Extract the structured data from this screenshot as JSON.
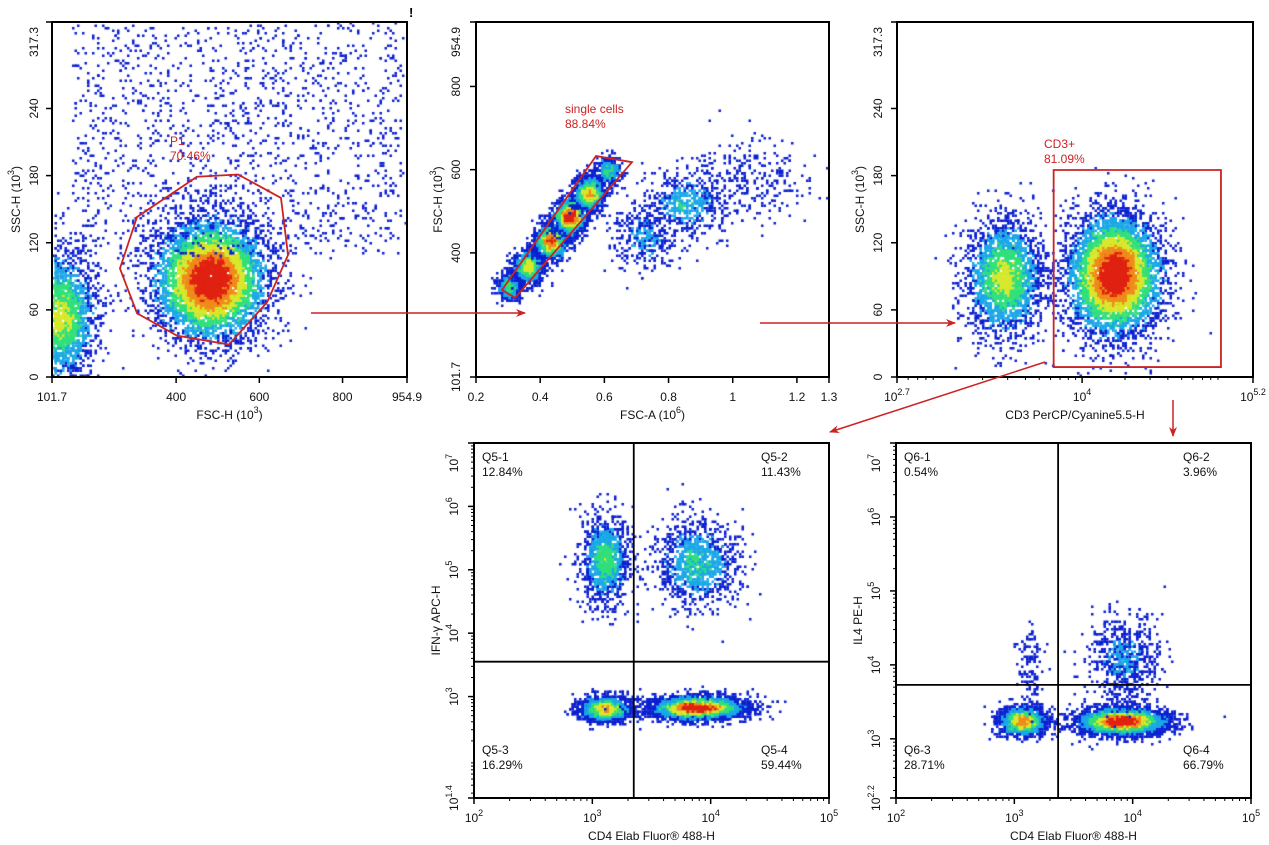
{
  "corner_mark": "!",
  "colors": {
    "gate": "#cc2222",
    "arrow": "#cc2222",
    "axis": "#000000",
    "density_scale": [
      "#0a1fd0",
      "#1aa7e8",
      "#2fe07a",
      "#d8e82a",
      "#f08a1a",
      "#e02010"
    ]
  },
  "chart_data": [
    {
      "type": "scatter",
      "style": "density-dot-plot",
      "xlabel": {
        "text": "FSC-H  (10",
        "sup": "3",
        "tail": ")"
      },
      "ylabel": {
        "text": "SSC-H  (10",
        "sup": "3",
        "tail": ")"
      },
      "xscale": "linear",
      "yscale": "linear",
      "xlim": [
        101.7,
        954.9
      ],
      "ylim": [
        0,
        317.3
      ],
      "xticks": [
        {
          "value": 101.7,
          "label": "101.7"
        },
        {
          "value": 400,
          "label": "400"
        },
        {
          "value": 600,
          "label": "600"
        },
        {
          "value": 800,
          "label": "800"
        },
        {
          "value": 954.9,
          "label": "954.9"
        }
      ],
      "yticks": [
        {
          "value": 0,
          "label": "0"
        },
        {
          "value": 60,
          "label": "60"
        },
        {
          "value": 120,
          "label": "120"
        },
        {
          "value": 180,
          "label": "180"
        },
        {
          "value": 240,
          "label": "240"
        },
        {
          "value": 317.3,
          "label": "317.3"
        }
      ],
      "gate": {
        "shape": "polygon",
        "name": "P1",
        "percent": "70.46%",
        "vertices": [
          [
            265,
            97
          ],
          [
            306,
            143
          ],
          [
            450,
            179
          ],
          [
            549,
            181
          ],
          [
            652,
            160
          ],
          [
            669,
            109
          ],
          [
            619,
            67
          ],
          [
            527,
            29
          ],
          [
            402,
            37
          ],
          [
            306,
            57
          ]
        ]
      },
      "populations": [
        {
          "center": [
            480,
            88
          ],
          "spread": [
            70,
            28
          ],
          "events": 5000,
          "peak": 1.0
        },
        {
          "center": [
            120,
            55
          ],
          "spread": [
            45,
            30
          ],
          "events": 2200,
          "peak": 0.55
        },
        {
          "range": [
            [
              150,
              950
            ],
            [
              110,
              317
            ]
          ],
          "events": 1500,
          "peak": 0.05
        }
      ]
    },
    {
      "type": "scatter",
      "style": "density-dot-plot",
      "xlabel": {
        "text": "FSC-A  (10",
        "sup": "6",
        "tail": ")"
      },
      "ylabel": {
        "text": "FSC-H  (10",
        "sup": "3",
        "tail": ")"
      },
      "xscale": "linear",
      "yscale": "linear",
      "xlim": [
        0.2,
        1.3
      ],
      "ylim": [
        101.7,
        954.9
      ],
      "xticks": [
        {
          "value": 0.2,
          "label": "0.2"
        },
        {
          "value": 0.4,
          "label": "0.4"
        },
        {
          "value": 0.6,
          "label": "0.6"
        },
        {
          "value": 0.8,
          "label": "0.8"
        },
        {
          "value": 1,
          "label": "1"
        },
        {
          "value": 1.2,
          "label": "1.2"
        },
        {
          "value": 1.3,
          "label": "1.3"
        }
      ],
      "yticks": [
        {
          "value": 101.7,
          "label": "101.7"
        },
        {
          "value": 400,
          "label": "400"
        },
        {
          "value": 600,
          "label": "600"
        },
        {
          "value": 800,
          "label": "800"
        },
        {
          "value": 954.9,
          "label": "954.9"
        }
      ],
      "gate": {
        "shape": "polygon",
        "name": "single cells",
        "percent": "88.84%",
        "vertices": [
          [
            0.281,
            311
          ],
          [
            0.574,
            633
          ],
          [
            0.686,
            618
          ],
          [
            0.322,
            292
          ]
        ]
      },
      "populations": [
        {
          "center": [
            0.3,
            320
          ],
          "spread": [
            0.02,
            18
          ],
          "events": 500,
          "peak": 0.45
        },
        {
          "center": [
            0.36,
            370
          ],
          "spread": [
            0.025,
            22
          ],
          "events": 900,
          "peak": 0.6
        },
        {
          "center": [
            0.43,
            430
          ],
          "spread": [
            0.025,
            22
          ],
          "events": 1300,
          "peak": 0.85
        },
        {
          "center": [
            0.49,
            490
          ],
          "spread": [
            0.025,
            22
          ],
          "events": 1300,
          "peak": 1.0
        },
        {
          "center": [
            0.55,
            545
          ],
          "spread": [
            0.025,
            22
          ],
          "events": 900,
          "peak": 0.7
        },
        {
          "center": [
            0.61,
            600
          ],
          "spread": [
            0.02,
            18
          ],
          "events": 400,
          "peak": 0.4
        },
        {
          "center": [
            0.72,
            440
          ],
          "spread": [
            0.05,
            40
          ],
          "events": 350,
          "peak": 0.2
        },
        {
          "center": [
            0.85,
            520
          ],
          "spread": [
            0.06,
            40
          ],
          "events": 500,
          "peak": 0.3
        },
        {
          "center": [
            1.05,
            580
          ],
          "spread": [
            0.1,
            50
          ],
          "events": 300,
          "peak": 0.1
        }
      ]
    },
    {
      "type": "scatter",
      "style": "density-dot-plot",
      "xlabel": {
        "text": "CD3 PerCP/Cyanine5.5-H",
        "sup": "",
        "tail": ""
      },
      "ylabel": {
        "text": "SSC-H  (10",
        "sup": "3",
        "tail": ")"
      },
      "xscale": "log",
      "yscale": "linear",
      "xlim": [
        501.19,
        158489.32
      ],
      "ylim": [
        0,
        317.3
      ],
      "xticks": [
        {
          "value": 501.19,
          "label": "10",
          "exp": "2.7"
        },
        {
          "value": 10000,
          "label": "10",
          "exp": "4"
        },
        {
          "value": 158489.32,
          "label": "10",
          "exp": "5.2"
        }
      ],
      "yticks": [
        {
          "value": 0,
          "label": "0"
        },
        {
          "value": 60,
          "label": "60"
        },
        {
          "value": 120,
          "label": "120"
        },
        {
          "value": 180,
          "label": "180"
        },
        {
          "value": 240,
          "label": "240"
        },
        {
          "value": 317.3,
          "label": "317.3"
        }
      ],
      "gate": {
        "shape": "rectangle",
        "name": "CD3+",
        "percent": "81.09%",
        "vertices": [
          [
            6310,
            8.9
          ],
          [
            94406,
            185
          ]
        ]
      },
      "populations": [
        {
          "center": [
            2820,
            90
          ],
          "spread": [
            0.14,
            27
          ],
          "events": 2200,
          "peak": 0.55
        },
        {
          "center": [
            16600,
            92
          ],
          "spread": [
            0.17,
            28
          ],
          "events": 5000,
          "peak": 1.0
        }
      ]
    },
    {
      "type": "scatter",
      "style": "density-dot-plot",
      "xlabel": {
        "text": "CD4 Elab Fluor® 488-H",
        "sup": "",
        "tail": ""
      },
      "ylabel": {
        "text": "IFN-γ APC-H",
        "sup": "",
        "tail": ""
      },
      "xscale": "log",
      "yscale": "log",
      "xlim": [
        100,
        100000
      ],
      "ylim": [
        25.12,
        10000000
      ],
      "xticks": [
        {
          "value": 100,
          "label": "10",
          "exp": "2"
        },
        {
          "value": 1000,
          "label": "10",
          "exp": "3"
        },
        {
          "value": 10000,
          "label": "10",
          "exp": "4"
        },
        {
          "value": 100000,
          "label": "10",
          "exp": "5"
        }
      ],
      "yticks": [
        {
          "value": 25.12,
          "label": "10",
          "exp": "1.4"
        },
        {
          "value": 1000,
          "label": "10",
          "exp": "3"
        },
        {
          "value": 10000,
          "label": "10",
          "exp": "4"
        },
        {
          "value": 100000,
          "label": "10",
          "exp": "5"
        },
        {
          "value": 1000000,
          "label": "10",
          "exp": "6"
        },
        {
          "value": 10000000,
          "label": "10",
          "exp": "7"
        }
      ],
      "quadrant": {
        "x": 2239,
        "y": 3548,
        "labels": [
          {
            "name": "Q5-1",
            "percent": "12.84%"
          },
          {
            "name": "Q5-2",
            "percent": "11.43%"
          },
          {
            "name": "Q5-3",
            "percent": "16.29%"
          },
          {
            "name": "Q5-4",
            "percent": "59.44%"
          }
        ]
      },
      "populations": [
        {
          "center": [
            1260,
            660
          ],
          "spread": [
            0.11,
            0.1
          ],
          "events": 1400,
          "peak": 0.7
        },
        {
          "center": [
            7600,
            690
          ],
          "spread": [
            0.2,
            0.09
          ],
          "events": 4000,
          "peak": 1.0
        },
        {
          "center": [
            1260,
            150000
          ],
          "spread": [
            0.1,
            0.35
          ],
          "events": 1100,
          "peak": 0.45
        },
        {
          "center": [
            7400,
            130000
          ],
          "spread": [
            0.17,
            0.35
          ],
          "events": 1100,
          "peak": 0.35
        }
      ]
    },
    {
      "type": "scatter",
      "style": "density-dot-plot",
      "xlabel": {
        "text": "CD4 Elab Fluor® 488-H",
        "sup": "",
        "tail": ""
      },
      "ylabel": {
        "text": "IL4 PE-H",
        "sup": "",
        "tail": ""
      },
      "xscale": "log",
      "yscale": "log",
      "xlim": [
        100,
        100000
      ],
      "ylim": [
        158.49,
        10000000
      ],
      "xticks": [
        {
          "value": 100,
          "label": "10",
          "exp": "2"
        },
        {
          "value": 1000,
          "label": "10",
          "exp": "3"
        },
        {
          "value": 10000,
          "label": "10",
          "exp": "4"
        },
        {
          "value": 100000,
          "label": "10",
          "exp": "5"
        }
      ],
      "yticks": [
        {
          "value": 158.49,
          "label": "10",
          "exp": "2.2"
        },
        {
          "value": 1000,
          "label": "10",
          "exp": "3"
        },
        {
          "value": 10000,
          "label": "10",
          "exp": "4"
        },
        {
          "value": 100000,
          "label": "10",
          "exp": "5"
        },
        {
          "value": 1000000,
          "label": "10",
          "exp": "6"
        },
        {
          "value": 10000000,
          "label": "10",
          "exp": "7"
        }
      ],
      "quadrant": {
        "x": 2344,
        "y": 5370,
        "labels": [
          {
            "name": "Q6-1",
            "percent": "0.54%"
          },
          {
            "name": "Q6-2",
            "percent": "3.96%"
          },
          {
            "name": "Q6-3",
            "percent": "28.71%"
          },
          {
            "name": "Q6-4",
            "percent": "66.79%"
          }
        ]
      },
      "populations": [
        {
          "center": [
            1150,
            1780
          ],
          "spread": [
            0.1,
            0.1
          ],
          "events": 1400,
          "peak": 0.75
        },
        {
          "center": [
            8000,
            1780
          ],
          "spread": [
            0.19,
            0.09
          ],
          "events": 4000,
          "peak": 1.0
        },
        {
          "center": [
            8000,
            12000
          ],
          "spread": [
            0.15,
            0.3
          ],
          "events": 700,
          "peak": 0.2
        },
        {
          "center": [
            1300,
            10000
          ],
          "spread": [
            0.06,
            0.3
          ],
          "events": 120,
          "peak": 0.05
        }
      ]
    }
  ]
}
